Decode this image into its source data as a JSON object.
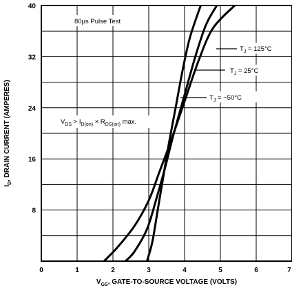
{
  "chart_data": {
    "type": "line",
    "title": "",
    "xlabel": "V_GS, GATE-TO-SOURCE VOLTAGE (VOLTS)",
    "xlabel_parts": {
      "main": "V",
      "sub": "GS",
      "rest": ", GATE-TO-SOURCE VOLTAGE (VOLTS)"
    },
    "ylabel": "I_D, DRAIN CURRENT (AMPERES)",
    "ylabel_parts": {
      "main": "I",
      "sub": "D",
      "rest": ", DRAIN CURRENT (AMPERES)"
    },
    "xlim": [
      0,
      7
    ],
    "ylim": [
      0,
      40
    ],
    "x_ticks": [
      0,
      1,
      2,
      3,
      4,
      5,
      6,
      7
    ],
    "y_ticks": [
      8,
      16,
      24,
      32,
      40
    ],
    "grid": true,
    "annotations": {
      "pulse_test": "80µs Pulse Test",
      "condition": "V_DS > I_D(on) × R_DS(on) max.",
      "condition_parts": [
        "V",
        "DS",
        " > I",
        "D(on)",
        " × R",
        "DS(on)",
        " max."
      ]
    },
    "series": [
      {
        "name": "T_J = 125°C",
        "label_parts": {
          "main": "T",
          "sub": "J",
          "rest": " = 125°C"
        },
        "points": [
          [
            1.75,
            0
          ],
          [
            2.1,
            2
          ],
          [
            2.6,
            5.5
          ],
          [
            3.0,
            9.5
          ],
          [
            3.3,
            14
          ],
          [
            3.6,
            18.5
          ],
          [
            4.0,
            25
          ],
          [
            4.4,
            31.5
          ],
          [
            4.8,
            36.5
          ],
          [
            5.4,
            40
          ]
        ]
      },
      {
        "name": "T_J = 25°C",
        "label_parts": {
          "main": "T",
          "sub": "J",
          "rest": " = 25°C"
        },
        "points": [
          [
            2.35,
            0
          ],
          [
            2.6,
            1.5
          ],
          [
            2.95,
            5
          ],
          [
            3.2,
            9.5
          ],
          [
            3.45,
            14.5
          ],
          [
            3.7,
            20
          ],
          [
            4.0,
            26
          ],
          [
            4.3,
            32
          ],
          [
            4.6,
            37
          ],
          [
            4.9,
            40
          ]
        ]
      },
      {
        "name": "T_J = -50°C",
        "label_parts": {
          "main": "T",
          "sub": "J",
          "rest": " = −50°C"
        },
        "points": [
          [
            2.95,
            0
          ],
          [
            3.1,
            3
          ],
          [
            3.25,
            8
          ],
          [
            3.4,
            13
          ],
          [
            3.55,
            18
          ],
          [
            3.75,
            24
          ],
          [
            3.95,
            30
          ],
          [
            4.15,
            35
          ],
          [
            4.45,
            40
          ]
        ]
      }
    ]
  }
}
